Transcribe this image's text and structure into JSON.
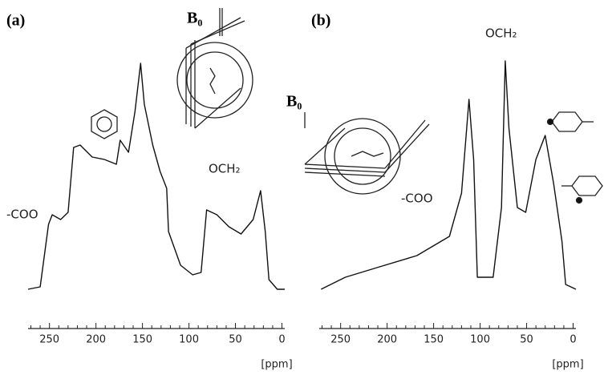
{
  "chart_data": [
    {
      "type": "line",
      "panel_label": "(a)",
      "field_label": "B₀",
      "annotations": [
        "-COO",
        "OCH₂"
      ],
      "x": [
        273,
        260,
        251,
        247,
        238,
        230,
        224,
        217,
        204,
        191,
        178,
        174,
        165,
        158,
        152,
        148,
        139,
        131,
        124,
        122,
        109,
        96,
        87,
        81,
        70,
        57,
        44,
        31,
        23,
        18,
        14,
        5,
        -3
      ],
      "values": [
        3,
        4,
        30,
        34,
        32,
        35,
        62,
        63,
        58,
        57,
        55,
        65,
        60,
        77,
        97,
        80,
        63,
        52,
        45,
        27,
        13,
        9,
        10,
        36,
        34,
        29,
        26,
        32,
        44,
        27,
        7,
        3,
        3
      ],
      "color": "#111111",
      "xlim": [
        273,
        -3
      ],
      "ylim": [
        0,
        100
      ],
      "xticks": [
        250,
        200,
        150,
        100,
        50,
        0
      ],
      "xminorticks": [
        270,
        260,
        240,
        230,
        220,
        210,
        190,
        180,
        170,
        160,
        140,
        130,
        120,
        110,
        90,
        80,
        70,
        60,
        40,
        30,
        20,
        10
      ],
      "xlabel": "[ppm]"
    },
    {
      "type": "line",
      "panel_label": "(b)",
      "field_label": "B₀",
      "annotations": [
        "OCH₂",
        "-COO"
      ],
      "x": [
        271,
        245,
        211,
        168,
        133,
        120,
        112,
        107,
        103,
        86,
        77,
        73,
        69,
        60,
        51,
        40,
        30,
        21,
        12,
        8,
        -3
      ],
      "values": [
        3,
        8,
        12,
        17,
        25,
        43,
        82,
        57,
        8,
        8,
        37,
        98,
        70,
        37,
        35,
        57,
        67,
        47,
        23,
        5,
        3
      ],
      "color": "#111111",
      "xlim": [
        273,
        -3
      ],
      "ylim": [
        0,
        100
      ],
      "xticks": [
        250,
        200,
        150,
        100,
        50,
        0
      ],
      "xminorticks": [
        270,
        260,
        240,
        230,
        220,
        210,
        190,
        180,
        170,
        160,
        140,
        130,
        120,
        110,
        90,
        80,
        70,
        60,
        40,
        30,
        20,
        10
      ],
      "xlabel": "[ppm]"
    }
  ]
}
